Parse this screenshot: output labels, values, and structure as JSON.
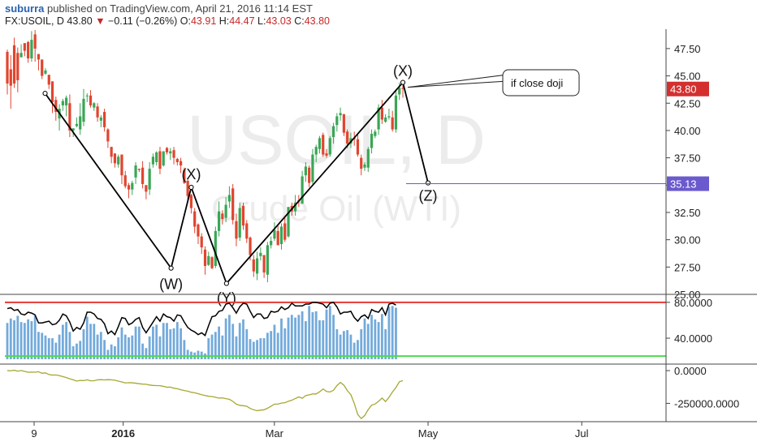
{
  "header": {
    "publisher": "suburra",
    "published_text": "published on TradingView.com, April 21, 2016 11:14 EST",
    "symbol": "FX:USOIL, D",
    "last": "43.80",
    "change": "−0.11 (−0.26%)",
    "open_label": "O:",
    "open": "43.91",
    "high_label": "H:",
    "high": "44.47",
    "low_label": "L:",
    "low": "43.03",
    "close_label": "C:",
    "close": "43.80"
  },
  "watermark": {
    "line1": "USOIL, D",
    "line2": "Crude Oil (WTI)"
  },
  "colors": {
    "up": "#3aa655",
    "down": "#e0452f",
    "rsi_bars": "#5b9bd5",
    "rsi_line": "#000000",
    "overbought": "#e53935",
    "oversold": "#4cdc4c",
    "osc": "#a6a832",
    "last_price_bg": "#d32f2f",
    "target_bg": "#6a5acd",
    "target_line": "#6a5acd"
  },
  "chart_data": [
    {
      "type": "candlestick",
      "title": "FX:USOIL, D",
      "ylim": [
        25,
        49.2
      ],
      "y_ticks": [
        "47.50",
        "45.00",
        "42.50",
        "40.00",
        "37.50",
        "35.00",
        "32.50",
        "30.00",
        "27.50",
        "25.00"
      ],
      "x_ticks": [
        "9",
        "2016",
        "Mar",
        "May",
        "Jul"
      ],
      "price_labels": {
        "last": "43.80",
        "target": "35.13"
      },
      "wave_points": [
        {
          "label": "",
          "date": "2015-12-01",
          "price": 43.4
        },
        {
          "label": "(W)",
          "date": "2016-01-20",
          "price": 27.4
        },
        {
          "label": "(X)",
          "date": "2016-01-28",
          "price": 34.8
        },
        {
          "label": "(Y)",
          "date": "2016-02-11",
          "price": 26.0
        },
        {
          "label": "(X)",
          "date": "2016-04-21",
          "price": 44.4
        },
        {
          "label": "(Z)",
          "date": "2016-05-01",
          "price": 35.2
        }
      ],
      "target_price": 35.13,
      "callout": "if close doji",
      "candles": [
        [
          47.2,
          44.3,
          43.3,
          47.4
        ],
        [
          45.6,
          44.1,
          42.0,
          46.9
        ],
        [
          47.8,
          44.3,
          43.9,
          48.5
        ],
        [
          47.1,
          44.6,
          43.5,
          47.6
        ],
        [
          46.7,
          47.1,
          46.7,
          47.9
        ],
        [
          48.0,
          47.3,
          46.8,
          48.0
        ],
        [
          48.1,
          46.6,
          46.2,
          48.2
        ],
        [
          46.6,
          48.3,
          46.3,
          49.1
        ],
        [
          48.8,
          47.5,
          46.3,
          49.2
        ],
        [
          47.0,
          46.5,
          45.5,
          47.0
        ],
        [
          46.5,
          45.0,
          44.7,
          46.5
        ],
        [
          45.2,
          45.5,
          45.1,
          45.7
        ],
        [
          45.1,
          44.2,
          43.8,
          45.1
        ],
        [
          44.5,
          42.6,
          41.6,
          44.5
        ],
        [
          42.8,
          41.7,
          40.9,
          43.1
        ],
        [
          41.1,
          42.0,
          40.0,
          42.4
        ],
        [
          42.3,
          42.7,
          41.8,
          42.9
        ],
        [
          42.3,
          43.0,
          41.3,
          43.2
        ],
        [
          42.5,
          40.0,
          39.4,
          43.3
        ],
        [
          40.0,
          40.2,
          39.4,
          40.2
        ],
        [
          40.4,
          40.6,
          40.3,
          41.2
        ],
        [
          40.1,
          41.3,
          39.6,
          42.5
        ],
        [
          40.8,
          42.9,
          40.4,
          43.8
        ],
        [
          43.2,
          43.2,
          42.6,
          43.4
        ],
        [
          43.2,
          42.3,
          42.1,
          43.7
        ],
        [
          42.1,
          42.5,
          41.8,
          42.6
        ],
        [
          42.2,
          41.2,
          40.8,
          42.5
        ],
        [
          40.9,
          41.2,
          40.3,
          41.4
        ],
        [
          41.7,
          40.3,
          39.9,
          42.0
        ],
        [
          40.1,
          39.0,
          38.4,
          40.2
        ],
        [
          38.5,
          37.6,
          37.0,
          38.5
        ],
        [
          37.9,
          37.0,
          36.6,
          37.9
        ],
        [
          36.9,
          37.6,
          36.6,
          37.8
        ],
        [
          37.8,
          35.9,
          35.1,
          37.8
        ],
        [
          35.9,
          34.9,
          34.7,
          36.3
        ],
        [
          35.0,
          34.6,
          33.8,
          35.2
        ],
        [
          34.6,
          35.2,
          34.1,
          35.4
        ],
        [
          35.7,
          36.8,
          35.1,
          37.1
        ],
        [
          36.5,
          36.4,
          36.2,
          36.5
        ],
        [
          36.6,
          35.1,
          34.7,
          37.2
        ],
        [
          35.0,
          34.4,
          33.7,
          35.0
        ],
        [
          34.6,
          36.5,
          34.1,
          37.1
        ],
        [
          36.9,
          37.6,
          36.6,
          37.9
        ],
        [
          37.1,
          38.0,
          36.8,
          38.1
        ],
        [
          38.1,
          36.5,
          36.0,
          38.5
        ],
        [
          36.8,
          38.1,
          36.7,
          38.1
        ],
        [
          38.4,
          38.0,
          37.8,
          38.5
        ],
        [
          37.9,
          38.1,
          37.3,
          38.4
        ],
        [
          38.2,
          37.5,
          36.9,
          38.5
        ],
        [
          37.4,
          37.1,
          36.8,
          37.5
        ],
        [
          37.2,
          36.8,
          36.1,
          37.5
        ],
        [
          36.4,
          35.2,
          35.1,
          36.6
        ],
        [
          35.4,
          34.0,
          33.5,
          35.6
        ],
        [
          34.1,
          32.9,
          32.4,
          34.2
        ],
        [
          32.6,
          31.2,
          30.6,
          32.9
        ],
        [
          31.4,
          30.3,
          29.6,
          31.5
        ],
        [
          30.3,
          29.3,
          28.7,
          30.6
        ],
        [
          29.1,
          27.6,
          26.8,
          29.4
        ],
        [
          27.7,
          28.5,
          27.6,
          28.9
        ],
        [
          28.4,
          27.4,
          27.3,
          28.5
        ],
        [
          27.6,
          30.8,
          27.4,
          31.2
        ],
        [
          30.8,
          32.6,
          30.3,
          33.5
        ],
        [
          32.4,
          31.9,
          31.4,
          32.7
        ],
        [
          32.0,
          33.2,
          31.6,
          33.9
        ],
        [
          33.5,
          34.1,
          32.9,
          34.9
        ],
        [
          34.7,
          31.8,
          31.4,
          35.1
        ],
        [
          31.7,
          30.1,
          29.4,
          32.4
        ],
        [
          30.2,
          32.9,
          29.9,
          33.4
        ],
        [
          33.1,
          31.3,
          30.9,
          33.4
        ],
        [
          31.5,
          30.1,
          29.7,
          31.8
        ],
        [
          30.2,
          28.6,
          28.1,
          30.3
        ],
        [
          28.2,
          27.1,
          26.6,
          28.6
        ],
        [
          26.9,
          28.3,
          26.3,
          28.9
        ],
        [
          28.5,
          28.8,
          28.1,
          29.3
        ],
        [
          28.6,
          27.0,
          26.5,
          28.6
        ],
        [
          26.8,
          29.5,
          26.1,
          29.8
        ],
        [
          29.5,
          29.9,
          29.2,
          30.3
        ],
        [
          30.1,
          30.9,
          29.9,
          31.6
        ],
        [
          30.8,
          29.5,
          29.5,
          31.3
        ],
        [
          29.6,
          31.2,
          29.1,
          31.5
        ],
        [
          31.5,
          30.0,
          29.8,
          32.2
        ],
        [
          30.3,
          33.0,
          30.2,
          33.0
        ],
        [
          33.1,
          32.6,
          32.2,
          33.4
        ],
        [
          32.6,
          33.4,
          32.2,
          34.1
        ],
        [
          33.6,
          33.5,
          33.0,
          34.1
        ],
        [
          33.3,
          35.8,
          33.3,
          36.3
        ],
        [
          35.9,
          36.7,
          35.3,
          37.1
        ],
        [
          36.6,
          35.2,
          34.8,
          36.8
        ],
        [
          35.3,
          37.8,
          35.1,
          38.3
        ],
        [
          37.8,
          38.5,
          37.1,
          38.7
        ],
        [
          38.3,
          39.3,
          37.9,
          39.5
        ],
        [
          39.6,
          37.8,
          37.6,
          39.8
        ],
        [
          37.9,
          37.7,
          37.5,
          38.3
        ],
        [
          37.8,
          39.3,
          37.6,
          39.5
        ],
        [
          39.4,
          40.4,
          38.8,
          40.7
        ],
        [
          40.5,
          41.3,
          39.9,
          41.6
        ],
        [
          41.4,
          41.6,
          40.9,
          42.1
        ],
        [
          41.5,
          39.8,
          39.5,
          41.5
        ],
        [
          39.9,
          38.8,
          38.4,
          40.1
        ],
        [
          38.8,
          39.3,
          38.4,
          39.8
        ],
        [
          39.3,
          39.2,
          38.6,
          39.9
        ],
        [
          39.2,
          37.8,
          37.6,
          39.7
        ],
        [
          37.5,
          36.5,
          35.9,
          37.8
        ],
        [
          36.6,
          36.9,
          36.3,
          37.1
        ],
        [
          36.6,
          38.3,
          36.2,
          38.5
        ],
        [
          38.4,
          39.7,
          37.9,
          40.1
        ],
        [
          39.5,
          39.9,
          39.3,
          40.1
        ],
        [
          40.1,
          42.1,
          39.6,
          42.4
        ],
        [
          42.1,
          41.0,
          40.6,
          42.8
        ],
        [
          40.8,
          41.2,
          40.7,
          41.5
        ],
        [
          41.2,
          41.3,
          41.0,
          42.0
        ],
        [
          41.2,
          40.1,
          39.9,
          41.8
        ],
        [
          40.1,
          43.2,
          39.8,
          43.7
        ],
        [
          43.3,
          43.9,
          42.8,
          44.4
        ],
        [
          43.9,
          43.8,
          43.0,
          44.5
        ]
      ]
    },
    {
      "type": "line",
      "title": "RSI",
      "y_ticks": [
        "80.0000",
        "40.0000"
      ],
      "ylim": [
        12,
        88
      ],
      "overbought": 80,
      "oversold": 20,
      "series": [
        {
          "values": [
            57,
            62,
            60,
            65,
            58,
            57,
            61,
            59,
            65,
            47,
            46,
            43,
            40,
            40,
            35,
            44,
            55,
            58,
            47,
            31,
            34,
            37,
            50,
            64,
            56,
            56,
            44,
            47,
            38,
            27,
            33,
            31,
            41,
            52,
            44,
            41,
            43,
            53,
            53,
            34,
            29,
            42,
            53,
            55,
            42,
            57,
            57,
            50,
            51,
            58,
            51,
            38,
            27,
            25,
            24,
            26,
            25,
            23,
            40,
            44,
            47,
            53,
            43,
            62,
            66,
            56,
            42,
            57,
            61,
            50,
            39,
            36,
            38,
            40,
            40,
            46,
            48,
            55,
            46,
            62,
            51,
            63,
            66,
            63,
            66,
            70,
            59,
            76,
            69,
            70,
            60,
            60,
            72,
            76,
            66,
            50,
            44,
            48,
            49,
            44,
            35,
            38,
            50,
            62,
            56,
            66,
            61,
            58,
            67,
            50,
            75,
            76,
            74
          ]
        },
        {
          "values": [
            73,
            74,
            71,
            72,
            67,
            66,
            69,
            68,
            66,
            57,
            57,
            58,
            59,
            55,
            56,
            60,
            67,
            65,
            58,
            48,
            52,
            50,
            57,
            69,
            69,
            67,
            62,
            61,
            56,
            45,
            48,
            44,
            53,
            63,
            62,
            55,
            57,
            61,
            63,
            52,
            46,
            52,
            58,
            64,
            59,
            67,
            64,
            63,
            59,
            66,
            65,
            58,
            52,
            49,
            47,
            44,
            46,
            43,
            54,
            64,
            65,
            70,
            71,
            78,
            79,
            74,
            68,
            75,
            79,
            78,
            70,
            63,
            67,
            67,
            62,
            63,
            70,
            69,
            70,
            75,
            72,
            74,
            79,
            76,
            76,
            76,
            78,
            78,
            80,
            80,
            79,
            78,
            74,
            79,
            80,
            75,
            67,
            69,
            69,
            70,
            63,
            59,
            64,
            66,
            62,
            72,
            70,
            69,
            74,
            66,
            78,
            79,
            77
          ]
        }
      ]
    },
    {
      "type": "line",
      "title": "Oscillator",
      "y_ticks": [
        "0.0000",
        "-250000.0000"
      ],
      "ylim": [
        -390000,
        50000
      ],
      "series": [
        {
          "values": [
            0,
            -1000,
            3000,
            -4000,
            1000,
            -6000,
            -12000,
            -11000,
            -12000,
            -8000,
            -20000,
            -17000,
            -30000,
            -34000,
            -33000,
            -38000,
            -45000,
            -53000,
            -62000,
            -70000,
            -80000,
            -75000,
            -76000,
            -70000,
            -78000,
            -77000,
            -70000,
            -69000,
            -71000,
            -69000,
            -70000,
            -73000,
            -80000,
            -86000,
            -94000,
            -92000,
            -93000,
            -96000,
            -100000,
            -103000,
            -104000,
            -110000,
            -113000,
            -114000,
            -115000,
            -120000,
            -127000,
            -126000,
            -134000,
            -138000,
            -146000,
            -152000,
            -157000,
            -165000,
            -169000,
            -176000,
            -184000,
            -190000,
            -196000,
            -198000,
            -203000,
            -210000,
            -208000,
            -214000,
            -219000,
            -235000,
            -256000,
            -265000,
            -268000,
            -272000,
            -289000,
            -299000,
            -306000,
            -302000,
            -299000,
            -287000,
            -272000,
            -256000,
            -255000,
            -248000,
            -245000,
            -234000,
            -226000,
            -213000,
            -201000,
            -211000,
            -191000,
            -185000,
            -178000,
            -178000,
            -162000,
            -140000,
            -159000,
            -163000,
            -150000,
            -114000,
            -90000,
            -111000,
            -153000,
            -183000,
            -251000,
            -335000,
            -366000,
            -343000,
            -298000,
            -264000,
            -255000,
            -234000,
            -210000,
            -236000,
            -204000,
            -163000,
            -129000,
            -85000,
            -76000
          ]
        }
      ]
    }
  ]
}
